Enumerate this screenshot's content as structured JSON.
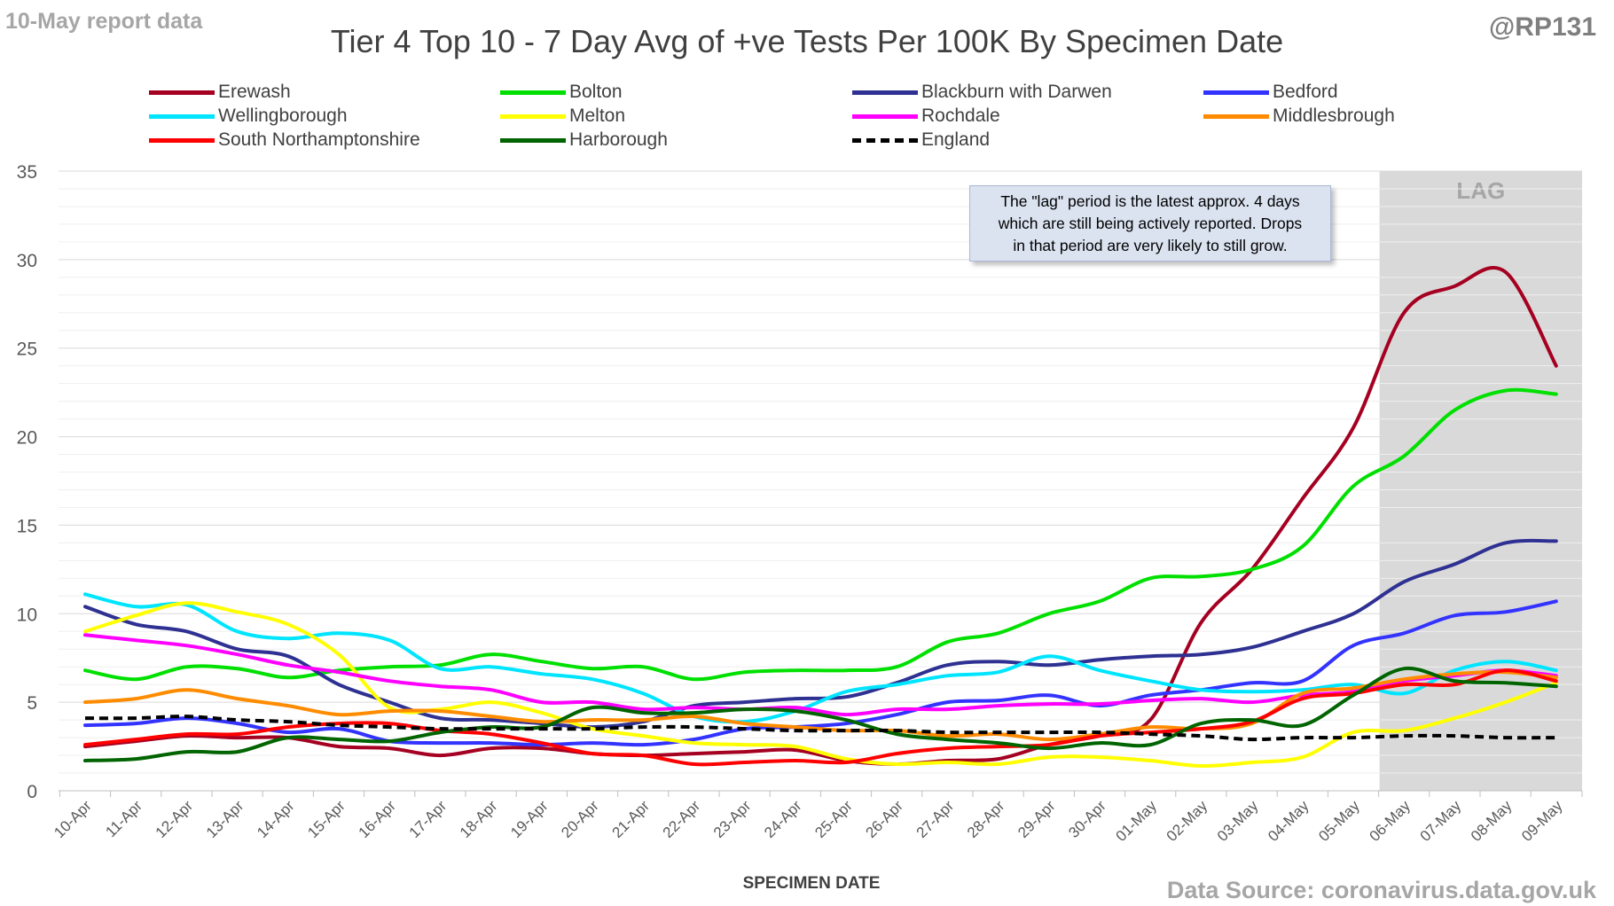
{
  "corner_left": "10-May report data",
  "corner_right": "@RP131",
  "source": "Data Source: coronavirus.data.gov.uk",
  "annotation": {
    "lines": [
      "The \"lag\" period is the latest approx. 4 days",
      "which are still being actively reported.  Drops",
      "in that period are very likely to still grow."
    ]
  },
  "chart_data": {
    "type": "line",
    "title": "Tier 4 Top 10 - 7 Day Avg of +ve Tests Per 100K By Specimen Date",
    "xlabel": "SPECIMEN DATE",
    "ylabel": "",
    "ylim": [
      0,
      35
    ],
    "yticks": [
      0,
      5,
      10,
      15,
      20,
      25,
      30,
      35
    ],
    "grid": true,
    "legend_position": "top",
    "lag_region": {
      "label": "LAG",
      "start": "06-May",
      "end": "09-May",
      "color": "#d9d9d9"
    },
    "categories": [
      "10-Apr",
      "11-Apr",
      "12-Apr",
      "13-Apr",
      "14-Apr",
      "15-Apr",
      "16-Apr",
      "17-Apr",
      "18-Apr",
      "19-Apr",
      "20-Apr",
      "21-Apr",
      "22-Apr",
      "23-Apr",
      "24-Apr",
      "25-Apr",
      "26-Apr",
      "27-Apr",
      "28-Apr",
      "29-Apr",
      "30-Apr",
      "01-May",
      "02-May",
      "03-May",
      "04-May",
      "05-May",
      "06-May",
      "07-May",
      "08-May",
      "09-May"
    ],
    "series": [
      {
        "name": "Erewash",
        "color": "#a50021",
        "dash": false,
        "values": [
          2.5,
          2.8,
          3.1,
          3.0,
          3.0,
          2.5,
          2.4,
          2.0,
          2.4,
          2.4,
          2.1,
          2.0,
          2.1,
          2.2,
          2.3,
          1.7,
          1.5,
          1.7,
          1.8,
          2.6,
          3.1,
          4.0,
          9.5,
          12.5,
          16.5,
          20.5,
          27.0,
          28.5,
          29.3,
          24.0
        ]
      },
      {
        "name": "Bolton",
        "color": "#00e000",
        "dash": false,
        "values": [
          6.8,
          6.3,
          7.0,
          6.9,
          6.4,
          6.8,
          7.0,
          7.1,
          7.7,
          7.3,
          6.9,
          7.0,
          6.3,
          6.7,
          6.8,
          6.8,
          7.0,
          8.4,
          8.9,
          10.0,
          10.7,
          12.0,
          12.1,
          12.5,
          13.8,
          17.2,
          18.9,
          21.5,
          22.6,
          22.4
        ]
      },
      {
        "name": "Blackburn with Darwen",
        "color": "#2e3192",
        "dash": false,
        "values": [
          10.4,
          9.4,
          9.0,
          8.0,
          7.6,
          6.0,
          5.0,
          4.1,
          4.0,
          3.8,
          3.6,
          3.9,
          4.8,
          5.0,
          5.2,
          5.3,
          6.1,
          7.1,
          7.3,
          7.1,
          7.4,
          7.6,
          7.7,
          8.1,
          9.0,
          10.0,
          11.8,
          12.8,
          14.0,
          14.1
        ]
      },
      {
        "name": "Bedford",
        "color": "#3333ff",
        "dash": false,
        "values": [
          3.7,
          3.8,
          4.1,
          3.8,
          3.3,
          3.5,
          2.8,
          2.7,
          2.7,
          2.6,
          2.7,
          2.6,
          2.9,
          3.5,
          3.6,
          3.8,
          4.3,
          5.0,
          5.1,
          5.4,
          4.8,
          5.4,
          5.7,
          6.1,
          6.2,
          8.2,
          8.9,
          9.9,
          10.1,
          10.7
        ]
      },
      {
        "name": "Wellingborough",
        "color": "#00e5ff",
        "dash": false,
        "values": [
          11.1,
          10.4,
          10.5,
          9.0,
          8.6,
          8.9,
          8.5,
          6.9,
          7.0,
          6.6,
          6.3,
          5.5,
          4.2,
          3.9,
          4.5,
          5.6,
          6.0,
          6.5,
          6.7,
          7.6,
          6.8,
          6.2,
          5.7,
          5.6,
          5.7,
          6.0,
          5.5,
          6.8,
          7.3,
          6.8
        ]
      },
      {
        "name": "Melton",
        "color": "#ffff00",
        "dash": false,
        "values": [
          9.0,
          9.9,
          10.6,
          10.1,
          9.4,
          7.7,
          4.7,
          4.6,
          5.0,
          4.4,
          3.5,
          3.1,
          2.7,
          2.6,
          2.5,
          1.8,
          1.5,
          1.6,
          1.5,
          1.9,
          1.9,
          1.7,
          1.4,
          1.6,
          1.9,
          3.3,
          3.4,
          4.1,
          5.0,
          6.1
        ]
      },
      {
        "name": "Rochdale",
        "color": "#ff00ff",
        "dash": false,
        "values": [
          8.8,
          8.5,
          8.2,
          7.7,
          7.1,
          6.7,
          6.2,
          5.9,
          5.7,
          5.0,
          5.0,
          4.6,
          4.7,
          4.6,
          4.7,
          4.3,
          4.6,
          4.6,
          4.8,
          4.9,
          4.9,
          5.1,
          5.2,
          5.0,
          5.4,
          5.6,
          6.2,
          6.5,
          6.8,
          6.5
        ]
      },
      {
        "name": "Middlesbrough",
        "color": "#ff8c00",
        "dash": false,
        "values": [
          5.0,
          5.2,
          5.7,
          5.2,
          4.8,
          4.3,
          4.5,
          4.5,
          4.2,
          3.9,
          4.0,
          4.0,
          4.2,
          3.8,
          3.6,
          3.4,
          3.4,
          3.1,
          3.2,
          2.9,
          3.2,
          3.6,
          3.5,
          3.8,
          5.5,
          5.8,
          6.3,
          6.6,
          6.7,
          6.4
        ]
      },
      {
        "name": "South Northamptonshire",
        "color": "#ff0000",
        "dash": false,
        "values": [
          2.6,
          2.9,
          3.2,
          3.2,
          3.6,
          3.8,
          3.8,
          3.4,
          3.2,
          2.7,
          2.1,
          2.0,
          1.5,
          1.6,
          1.7,
          1.6,
          2.1,
          2.4,
          2.5,
          2.6,
          3.1,
          3.3,
          3.5,
          3.9,
          5.2,
          5.5,
          6.0,
          6.0,
          6.8,
          6.2
        ]
      },
      {
        "name": "Harborough",
        "color": "#006400",
        "dash": false,
        "values": [
          1.7,
          1.8,
          2.2,
          2.2,
          3.0,
          2.9,
          2.8,
          3.3,
          3.6,
          3.6,
          4.7,
          4.4,
          4.4,
          4.6,
          4.5,
          4.0,
          3.2,
          2.9,
          2.7,
          2.4,
          2.7,
          2.6,
          3.8,
          4.0,
          3.7,
          5.4,
          6.9,
          6.2,
          6.1,
          5.9
        ]
      },
      {
        "name": "England",
        "color": "#000000",
        "dash": true,
        "values": [
          4.1,
          4.1,
          4.2,
          4.0,
          3.9,
          3.7,
          3.6,
          3.5,
          3.5,
          3.5,
          3.5,
          3.6,
          3.6,
          3.5,
          3.4,
          3.4,
          3.4,
          3.3,
          3.3,
          3.3,
          3.3,
          3.2,
          3.1,
          2.9,
          3.0,
          3.0,
          3.1,
          3.1,
          3.0,
          3.0
        ]
      }
    ]
  }
}
